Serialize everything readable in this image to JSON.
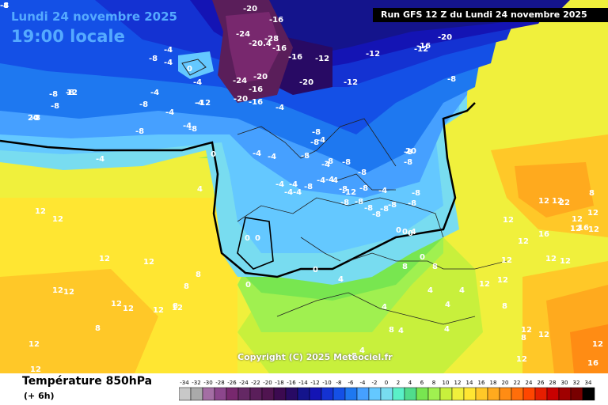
{
  "header": {
    "date": "Lundi 24 novembre 2025",
    "time": "19:00 locale",
    "run": "Run GFS 12 Z du Lundi 24 novembre 2025"
  },
  "footer": {
    "variable": "Température 850hPa",
    "lead": "(+ 6h)",
    "copyright": "Copyright (C) 2025 Meteociel.fr"
  },
  "legend": {
    "ticks": [
      "-34",
      "-32",
      "-30",
      "-28",
      "-26",
      "-24",
      "-22",
      "-20",
      "-18",
      "-16",
      "-14",
      "-12",
      "-10",
      "-8",
      "-6",
      "-4",
      "-2",
      "0",
      "2",
      "4",
      "6",
      "8",
      "10",
      "12",
      "14",
      "16",
      "18",
      "20",
      "22",
      "24",
      "26",
      "28",
      "30",
      "32",
      "34"
    ],
    "colors": [
      "#c8c8c8",
      "#aaaaaa",
      "#a46ea4",
      "#8c468c",
      "#78286e",
      "#642864",
      "#5a1e5a",
      "#501450",
      "#3c0a50",
      "#280a64",
      "#14148c",
      "#1414b4",
      "#1432d2",
      "#1450e6",
      "#1e78f0",
      "#46a0ff",
      "#64c8ff",
      "#78dcf0",
      "#5af0c8",
      "#50dc8c",
      "#78e650",
      "#a0f050",
      "#c8f03c",
      "#f0f03c",
      "#ffe632",
      "#ffc828",
      "#ffaa1e",
      "#ff8c14",
      "#ff6e0a",
      "#ff4600",
      "#e61e00",
      "#c80000",
      "#a00000",
      "#780000",
      "#000000"
    ]
  },
  "isotherm_labels": [
    {
      "t": "-20"
    },
    {
      "t": "-16"
    },
    {
      "t": "-24"
    },
    {
      "t": "-28"
    },
    {
      "t": "-20.4"
    },
    {
      "t": "-16"
    },
    {
      "t": "-12"
    },
    {
      "t": "-12"
    },
    {
      "t": "-12"
    },
    {
      "t": "-16"
    },
    {
      "t": "-20"
    },
    {
      "t": "-16"
    },
    {
      "t": "-8"
    },
    {
      "t": "-4"
    },
    {
      "t": "-4"
    },
    {
      "t": "-8"
    },
    {
      "t": "0"
    },
    {
      "t": "-4"
    },
    {
      "t": "-24"
    },
    {
      "t": "-20"
    },
    {
      "t": "-16"
    },
    {
      "t": "-20"
    },
    {
      "t": "-16"
    },
    {
      "t": "-20"
    },
    {
      "t": "-12"
    },
    {
      "t": "-12"
    },
    {
      "t": "-8"
    },
    {
      "t": "-8"
    },
    {
      "t": "-8"
    },
    {
      "t": "-8"
    },
    {
      "t": "-4"
    },
    {
      "t": "-8"
    },
    {
      "t": "-4"
    },
    {
      "t": "-4"
    },
    {
      "t": "-8"
    },
    {
      "t": "-4"
    },
    {
      "t": "-8"
    },
    {
      "t": "-4"
    },
    {
      "t": "-8"
    },
    {
      "t": "-4"
    },
    {
      "t": "-4"
    },
    {
      "t": "0"
    },
    {
      "t": "-4"
    },
    {
      "t": "-4"
    },
    {
      "t": "-8"
    },
    {
      "t": "-8"
    },
    {
      "t": "-8"
    },
    {
      "t": "-8"
    },
    {
      "t": "-8"
    },
    {
      "t": "-8"
    },
    {
      "t": "-4"
    },
    {
      "t": "-4"
    },
    {
      "t": "-4"
    },
    {
      "t": "-4"
    },
    {
      "t": "-4"
    },
    {
      "t": "-8"
    },
    {
      "t": "-8"
    },
    {
      "t": "-8"
    },
    {
      "t": "-8"
    },
    {
      "t": "-8"
    },
    {
      "t": "-8"
    },
    {
      "t": "-8"
    },
    {
      "t": "-4"
    },
    {
      "t": "-8"
    },
    {
      "t": "4"
    },
    {
      "t": "12"
    },
    {
      "t": "12"
    },
    {
      "t": "12"
    },
    {
      "t": "12"
    },
    {
      "t": "12"
    },
    {
      "t": "12"
    },
    {
      "t": "12"
    },
    {
      "t": "12"
    },
    {
      "t": "12"
    },
    {
      "t": "12"
    },
    {
      "t": "12"
    },
    {
      "t": "12"
    },
    {
      "t": "0"
    },
    {
      "t": "0"
    },
    {
      "t": "0"
    },
    {
      "t": "0"
    },
    {
      "t": "0"
    },
    {
      "t": "0"
    },
    {
      "t": "0.4"
    },
    {
      "t": "0"
    },
    {
      "t": "4"
    },
    {
      "t": "4"
    },
    {
      "t": "8"
    },
    {
      "t": "8"
    },
    {
      "t": "8"
    },
    {
      "t": "8"
    },
    {
      "t": "8"
    },
    {
      "t": "8"
    },
    {
      "t": "4"
    },
    {
      "t": "4"
    },
    {
      "t": "4"
    },
    {
      "t": "4"
    },
    {
      "t": "8"
    },
    {
      "t": "4"
    },
    {
      "t": "8"
    },
    {
      "t": "4"
    },
    {
      "t": "12"
    },
    {
      "t": "12"
    },
    {
      "t": "16"
    },
    {
      "t": "12"
    },
    {
      "t": "12"
    },
    {
      "t": "12"
    },
    {
      "t": "12"
    },
    {
      "t": "12"
    },
    {
      "t": "8"
    },
    {
      "t": "8"
    },
    {
      "t": "12"
    },
    {
      "t": "8"
    },
    {
      "t": "12"
    },
    {
      "t": "12"
    },
    {
      "t": "12"
    },
    {
      "t": "12"
    },
    {
      "t": "12"
    },
    {
      "t": "22"
    },
    {
      "t": "16"
    },
    {
      "t": "12"
    },
    {
      "t": "12"
    },
    {
      "t": "12"
    },
    {
      "t": "12"
    },
    {
      "t": "16"
    },
    {
      "t": "12"
    },
    {
      "t": "20"
    },
    {
      "t": "20"
    },
    {
      "t": "-8"
    },
    {
      "t": "-8"
    },
    {
      "t": "-8"
    },
    {
      "t": "-8"
    },
    {
      "t": "-4"
    },
    {
      "t": "-4"
    },
    {
      "t": "-4"
    },
    {
      "t": "-12"
    },
    {
      "t": "-8"
    },
    {
      "t": "-4"
    },
    {
      "t": "-4"
    }
  ]
}
